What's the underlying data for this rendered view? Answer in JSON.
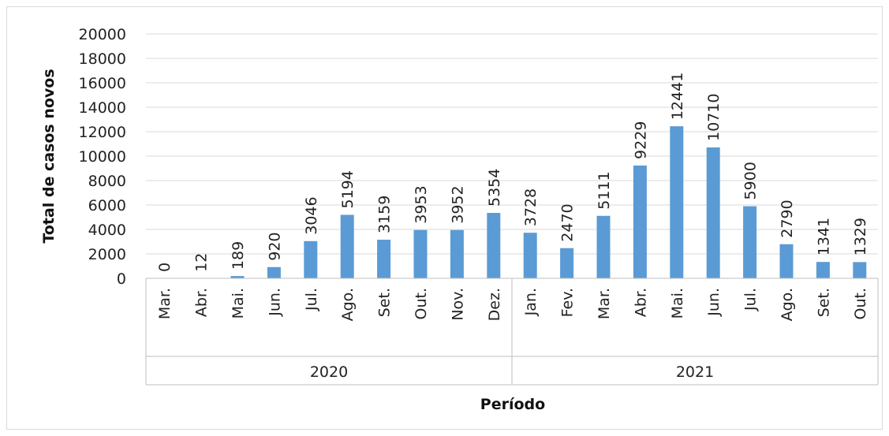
{
  "chart_data": {
    "type": "bar",
    "title": "",
    "xlabel": "Período",
    "ylabel": "Total de casos novos",
    "ylim": [
      0,
      20000
    ],
    "y_ticks": [
      0,
      2000,
      4000,
      6000,
      8000,
      10000,
      12000,
      14000,
      16000,
      18000,
      20000
    ],
    "grid": true,
    "bar_color": "#5b9bd5",
    "groups": [
      {
        "label": "2020",
        "categories": [
          "Mar.",
          "Abr.",
          "Mai.",
          "Jun.",
          "Jul.",
          "Ago.",
          "Set.",
          "Out.",
          "Nov.",
          "Dez."
        ]
      },
      {
        "label": "2021",
        "categories": [
          "Jan.",
          "Fev.",
          "Mar.",
          "Abr.",
          "Mai.",
          "Jun.",
          "Jul.",
          "Ago.",
          "Set.",
          "Out."
        ]
      }
    ],
    "values": [
      0,
      12,
      189,
      920,
      3046,
      5194,
      3159,
      3953,
      3952,
      5354,
      3728,
      2470,
      5111,
      9229,
      12441,
      10710,
      5900,
      2790,
      1341,
      1329
    ]
  }
}
